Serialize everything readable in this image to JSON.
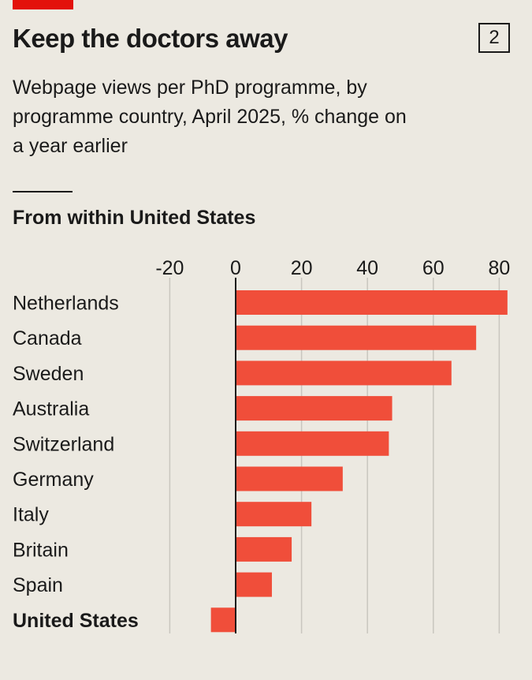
{
  "header": {
    "chart_number": "2"
  },
  "chart_data": {
    "type": "bar",
    "orientation": "horizontal",
    "title": "Keep the doctors away",
    "subtitle": "Webpage views per PhD programme, by programme country, April 2025, % change on a year earlier",
    "panel_label": "From within United States",
    "categories": [
      "Netherlands",
      "Canada",
      "Sweden",
      "Australia",
      "Switzerland",
      "Germany",
      "Italy",
      "Britain",
      "Spain",
      "United States"
    ],
    "values": [
      82.5,
      73,
      65.5,
      47.5,
      46.5,
      32.5,
      23,
      17,
      11,
      -7.5
    ],
    "highlight_category": "United States",
    "xlim": [
      -20,
      85
    ],
    "xticks": [
      "-20",
      "0",
      "20",
      "40",
      "60",
      "80"
    ],
    "grid": true,
    "colors": {
      "bar": "#f04e3a",
      "grid": "#c9c6bf",
      "zero_line": "#1a1a1a",
      "accent": "#e3120b"
    }
  }
}
